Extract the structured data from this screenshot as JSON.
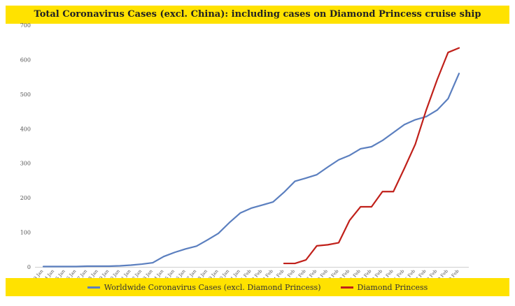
{
  "chart_data": {
    "type": "line",
    "title": "Total Coronavirus Cases (excl. China): including cases on Diamond Princess cruise ship",
    "xlabel": "",
    "ylabel": "",
    "ylim": [
      0,
      700
    ],
    "yticks": [
      0,
      100,
      200,
      300,
      400,
      500,
      600,
      700
    ],
    "grid": false,
    "legend_position": "bottom",
    "categories": [
      "13 Jan",
      "14 Jan",
      "15 Jan",
      "16 Jan",
      "17 Jan",
      "18 Jan",
      "19 Jan",
      "20 Jan",
      "21 Jan",
      "22 Jan",
      "23 Jan",
      "24 Jan",
      "25 Jan",
      "26 Jan",
      "27 Jan",
      "28 Jan",
      "29 Jan",
      "30 Jan",
      "31 Jan",
      "1 Feb",
      "2 Feb",
      "3 Feb",
      "4 Feb",
      "5 Feb",
      "6 Feb",
      "7 Feb",
      "8 Feb",
      "9 Feb",
      "10 Feb",
      "11 Feb",
      "12 Feb",
      "13 Feb",
      "14 Feb",
      "15 Feb",
      "16 Feb",
      "17 Feb",
      "18 Feb",
      "19 Feb",
      "20 Feb"
    ],
    "series": [
      {
        "name": "Worldwide Coronavirus Cases (excl. Diamond Princess)",
        "color": "#5b7fbf",
        "values": [
          1,
          1,
          1,
          1,
          2,
          2,
          2,
          3,
          5,
          8,
          12,
          30,
          42,
          52,
          60,
          78,
          97,
          128,
          156,
          170,
          179,
          188,
          216,
          248,
          257,
          267,
          289,
          310,
          323,
          342,
          348,
          366,
          389,
          412,
          426,
          435,
          454,
          487,
          560
        ]
      },
      {
        "name": "Diamond Princess",
        "color": "#c0201a",
        "values": [
          null,
          null,
          null,
          null,
          null,
          null,
          null,
          null,
          null,
          null,
          null,
          null,
          null,
          null,
          null,
          null,
          null,
          null,
          null,
          null,
          null,
          null,
          10,
          10,
          20,
          61,
          64,
          70,
          135,
          174,
          174,
          218,
          218,
          285,
          355,
          454,
          542,
          621,
          634
        ]
      }
    ]
  }
}
